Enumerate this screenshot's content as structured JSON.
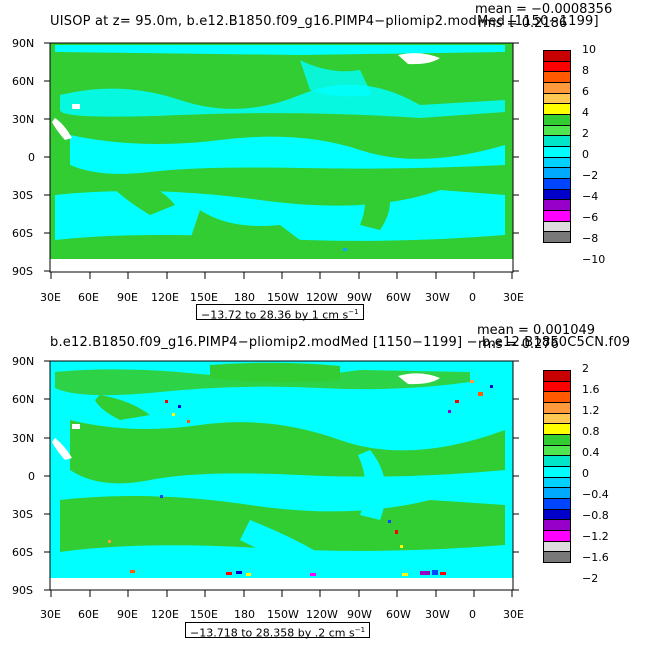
{
  "panels": [
    {
      "title": "UISOP at z=   95.0m, b.e12.B1850.f09_g16.PIMP4−pliomip2.modMed [1150−1199]",
      "mean_text": "mean = −0.0008356",
      "rms_text": "rms = 0.2186",
      "range_text": "−13.72 to 28.36 by 1 cm s",
      "range_unit_exp": "−1",
      "legend_labels": [
        "10",
        "8",
        "6",
        "4",
        "2",
        "0",
        "−2",
        "−4",
        "−6",
        "−8",
        "−10"
      ],
      "legend_colors": [
        "#c80000",
        "#ff0000",
        "#ff5a00",
        "#ff9a3c",
        "#ffc850",
        "#ffff00",
        "#32cd32",
        "#50e650",
        "#00e6c8",
        "#00ffff",
        "#00d2ff",
        "#00aaff",
        "#0046ff",
        "#0000c8",
        "#9600c8",
        "#ff00ff",
        "#dcdcdc",
        "#787878"
      ]
    },
    {
      "title": "b.e12.B1850.f09_g16.PIMP4−pliomip2.modMed [1150−1199] − b.e12.B1850C5CN.f09",
      "mean_text": "mean = 0.001049",
      "rms_text": "rms = 0.276",
      "range_text": "−13.718 to 28.358 by .2 cm s",
      "range_unit_exp": "−1",
      "legend_labels": [
        "2",
        "1.6",
        "1.2",
        "0.8",
        "0.4",
        "0",
        "−0.4",
        "−0.8",
        "−1.2",
        "−1.6",
        "−2"
      ],
      "legend_colors": [
        "#c80000",
        "#ff0000",
        "#ff5a00",
        "#ff9a3c",
        "#ffc850",
        "#ffff00",
        "#32cd32",
        "#50e650",
        "#00e6c8",
        "#00ffff",
        "#00d2ff",
        "#00aaff",
        "#0046ff",
        "#0000c8",
        "#9600c8",
        "#ff00ff",
        "#dcdcdc",
        "#787878"
      ]
    }
  ],
  "axes": {
    "lat_labels": [
      "90N",
      "60N",
      "30N",
      "0",
      "30S",
      "60S",
      "90S"
    ],
    "lon_labels": [
      "30E",
      "60E",
      "90E",
      "120E",
      "150E",
      "180",
      "150W",
      "120W",
      "90W",
      "60W",
      "30W",
      "0",
      "30E"
    ]
  },
  "colors": {
    "ocean_green": "#32cd32",
    "cyan": "#00ffff",
    "land": "#ffffff"
  }
}
